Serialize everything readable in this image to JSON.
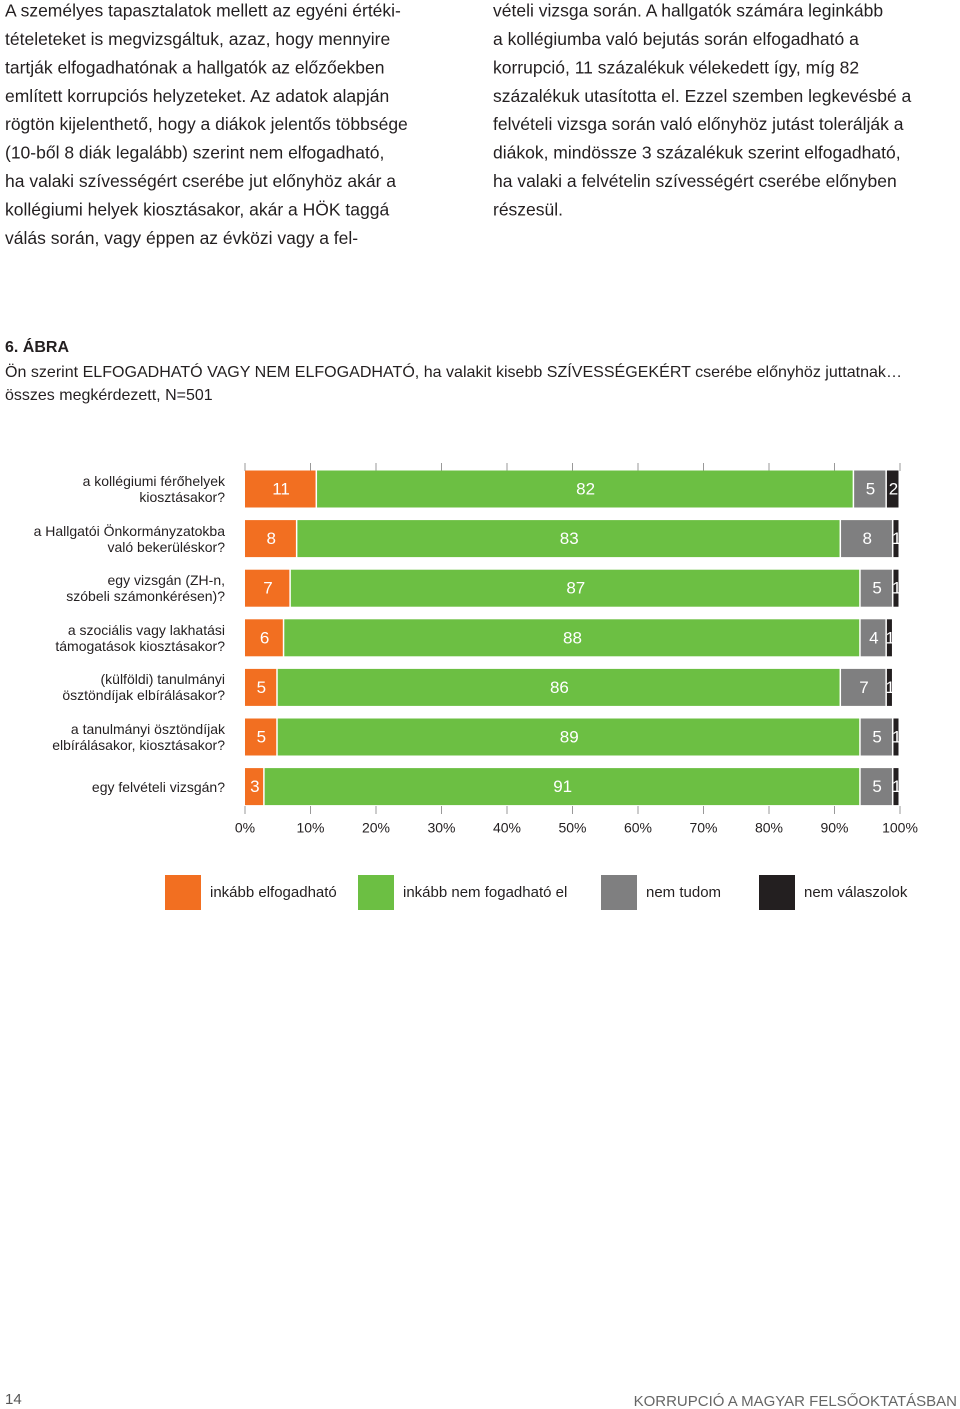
{
  "left_column": {
    "lines": [
      "A személyes tapasztalatok mellett az egyéni értéki-",
      "tételeteket is megvizsgáltuk, azaz, hogy mennyire",
      "tartják elfogadhatónak a hallgatók az előzőekben",
      "említett korrupciós helyzeteket. Az adatok alapján",
      "rögtön kijelenthető, hogy a diákok jelentős többsége",
      "(10-ből 8 diák legalább) szerint nem elfogadható,",
      "ha valaki szívességért cserébe jut előnyhöz akár a",
      "kollégiumi helyek kiosztásakor, akár a HÖK taggá",
      "válás során, vagy éppen az évközi vagy a fel-"
    ]
  },
  "right_column": {
    "lines": [
      "vételi vizsga során. A hallgatók számára leginkább",
      "a kollégiumba való bejutás során elfogadható a",
      "korrupció, 11 százalékuk vélekedett így, míg 82",
      "százalékuk utasította el. Ezzel szemben legkevésbé a",
      "felvételi vizsga során való előnyhöz jutást tolerálják a",
      "diákok, mindössze 3 százalékuk szerint elfogadható,",
      "ha valaki a felvételin szívességért cserébe előnyben",
      "részesül."
    ]
  },
  "figure": {
    "label": "6. ÁBRA"
  },
  "chart_data": {
    "type": "stacked-bar-horizontal",
    "title": "Ön szerint ELFOGADHATÓ VAGY NEM ELFOGADHATÓ, ha valakit kisebb SZÍVESSÉGEKÉRT cserébe előnyhöz juttatnak…",
    "subtitle": "összes megkérdezett, N=501",
    "categories": [
      "a kollégiumi férőhelyek\nkiosztásakor?",
      "a Hallgatói Önkormányzatokba\nvaló bekerüléskor?",
      "egy vizsgán (ZH-n,\nszóbeli számonkérésen)?",
      "a szociális vagy lakhatási\ntámogatások kiosztásakor?",
      "(külföldi) tanulmányi\nösztöndíjak elbírálásakor?",
      "a tanulmányi ösztöndíjak\nelbírálásakor, kiosztásakor?",
      "egy felvételi vizsgán?"
    ],
    "series": [
      {
        "name": "inkább elfogadható",
        "color": "#f26f21",
        "values": [
          11,
          8,
          7,
          6,
          5,
          5,
          3
        ]
      },
      {
        "name": "inkább nem fogadható el",
        "color": "#6cbf43",
        "values": [
          82,
          83,
          87,
          88,
          86,
          89,
          91
        ]
      },
      {
        "name": "nem tudom",
        "color": "#7f7f80",
        "values": [
          5,
          8,
          5,
          4,
          7,
          5,
          5
        ]
      },
      {
        "name": "nem válaszolok",
        "color": "#231f20",
        "values": [
          2,
          1,
          1,
          1,
          1,
          1,
          1
        ]
      }
    ],
    "xlim": [
      0,
      100
    ],
    "xticks": [
      {
        "value": 0,
        "label": "0%"
      },
      {
        "value": 10,
        "label": "10%"
      },
      {
        "value": 20,
        "label": "20%"
      },
      {
        "value": 30,
        "label": "30%"
      },
      {
        "value": 40,
        "label": "40%"
      },
      {
        "value": 50,
        "label": "50%"
      },
      {
        "value": 60,
        "label": "60%"
      },
      {
        "value": 70,
        "label": "70%"
      },
      {
        "value": 80,
        "label": "80%"
      },
      {
        "value": 90,
        "label": "90%"
      },
      {
        "value": 100,
        "label": "100%"
      }
    ]
  },
  "footer": {
    "page_number": "14",
    "running_title": "KORRUPCIÓ A MAGYAR FELSŐOKTATÁSBAN"
  }
}
